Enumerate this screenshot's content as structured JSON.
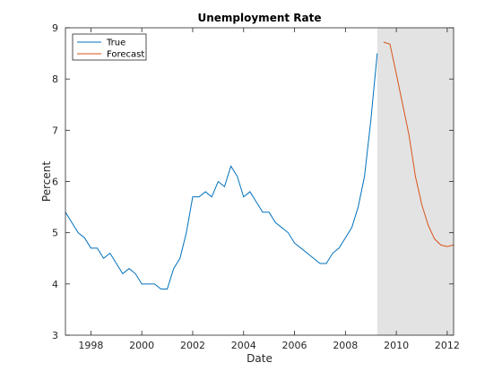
{
  "chart_data": {
    "type": "line",
    "title": "Unemployment Rate",
    "xlabel": "Date",
    "ylabel": "Percent",
    "xlim": [
      1997.0,
      2012.25
    ],
    "ylim": [
      3,
      9
    ],
    "x_ticks": [
      1998,
      2000,
      2002,
      2004,
      2006,
      2008,
      2010,
      2012
    ],
    "x_tick_labels": [
      "1998",
      "2000",
      "2002",
      "2004",
      "2006",
      "2008",
      "2010",
      "2012"
    ],
    "y_ticks": [
      3,
      4,
      5,
      6,
      7,
      8,
      9
    ],
    "y_tick_labels": [
      "3",
      "4",
      "5",
      "6",
      "7",
      "8",
      "9"
    ],
    "grid": false,
    "legend_position": "top-left",
    "shaded_region": {
      "x_start": 2009.25,
      "x_end": 2012.25,
      "color": "#e3e3e3"
    },
    "series": [
      {
        "name": "True",
        "color": "#0072bd",
        "x": [
          1997.0,
          1997.25,
          1997.5,
          1997.75,
          1998.0,
          1998.25,
          1998.5,
          1998.75,
          1999.0,
          1999.25,
          1999.5,
          1999.75,
          2000.0,
          2000.25,
          2000.5,
          2000.75,
          2001.0,
          2001.25,
          2001.5,
          2001.75,
          2002.0,
          2002.25,
          2002.5,
          2002.75,
          2003.0,
          2003.25,
          2003.5,
          2003.75,
          2004.0,
          2004.25,
          2004.5,
          2004.75,
          2005.0,
          2005.25,
          2005.5,
          2005.75,
          2006.0,
          2006.25,
          2006.5,
          2006.75,
          2007.0,
          2007.25,
          2007.5,
          2007.75,
          2008.0,
          2008.25,
          2008.5,
          2008.75,
          2009.0,
          2009.25
        ],
        "y": [
          5.4,
          5.2,
          5.0,
          4.9,
          4.7,
          4.7,
          4.5,
          4.6,
          4.4,
          4.2,
          4.3,
          4.2,
          4.0,
          4.0,
          4.0,
          3.9,
          3.9,
          4.3,
          4.5,
          5.0,
          5.7,
          5.7,
          5.8,
          5.7,
          6.0,
          5.9,
          6.3,
          6.1,
          5.7,
          5.8,
          5.6,
          5.4,
          5.4,
          5.2,
          5.1,
          5.0,
          4.8,
          4.7,
          4.6,
          4.5,
          4.4,
          4.4,
          4.6,
          4.7,
          4.9,
          5.1,
          5.5,
          6.1,
          7.2,
          8.5
        ]
      },
      {
        "name": "Forecast",
        "color": "#d95319",
        "x": [
          2009.5,
          2009.75,
          2010.0,
          2010.25,
          2010.5,
          2010.75,
          2011.0,
          2011.25,
          2011.5,
          2011.75,
          2012.0,
          2012.25
        ],
        "y": [
          8.72,
          8.68,
          8.1,
          7.5,
          6.9,
          6.1,
          5.55,
          5.15,
          4.88,
          4.76,
          4.73,
          4.76
        ]
      }
    ]
  }
}
